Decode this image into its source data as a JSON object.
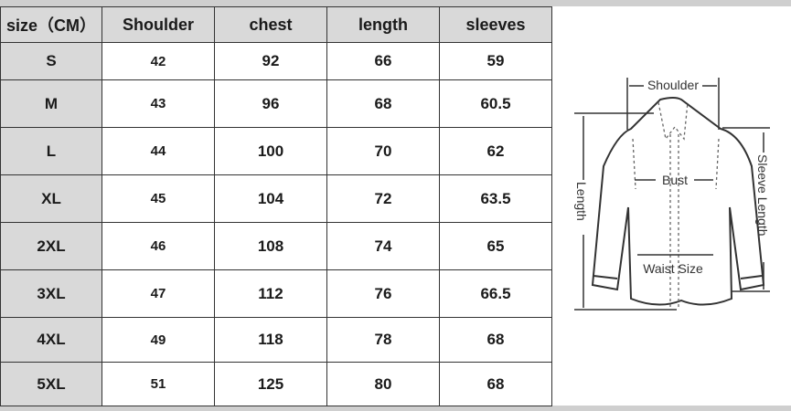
{
  "table": {
    "headers": [
      "size（CM）",
      "Shoulder",
      "chest",
      "length",
      "sleeves"
    ],
    "rows": [
      [
        "S",
        "42",
        "92",
        "66",
        "59"
      ],
      [
        "M",
        "43",
        "96",
        "68",
        "60.5"
      ],
      [
        "L",
        "44",
        "100",
        "70",
        "62"
      ],
      [
        "XL",
        "45",
        "104",
        "72",
        "63.5"
      ],
      [
        "2XL",
        "46",
        "108",
        "74",
        "65"
      ],
      [
        "3XL",
        "47",
        "112",
        "76",
        "66.5"
      ],
      [
        "4XL",
        "49",
        "118",
        "78",
        "68"
      ],
      [
        "5XL",
        "51",
        "125",
        "80",
        "68"
      ]
    ]
  },
  "diagram": {
    "shoulder": "Shoulder",
    "bust": "Bust",
    "waist": "Waist Size",
    "length": "Length",
    "sleeve": "Sleeve Length"
  }
}
